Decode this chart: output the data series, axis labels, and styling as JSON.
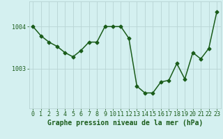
{
  "x": [
    0,
    1,
    2,
    3,
    4,
    5,
    6,
    7,
    8,
    9,
    10,
    11,
    12,
    13,
    14,
    15,
    16,
    17,
    18,
    19,
    20,
    21,
    22,
    23
  ],
  "y": [
    1004.0,
    1003.78,
    1003.63,
    1003.53,
    1003.38,
    1003.28,
    1003.43,
    1003.63,
    1003.63,
    1004.0,
    1004.0,
    1004.0,
    1003.72,
    1002.58,
    1002.42,
    1002.42,
    1002.68,
    1002.72,
    1003.12,
    1002.75,
    1003.38,
    1003.23,
    1003.48,
    1004.35
  ],
  "line_color": "#1a5c1a",
  "marker": "D",
  "marker_size": 2.5,
  "bg_color": "#d4f0f0",
  "grid_color": "#b8d4d4",
  "xlabel": "Graphe pression niveau de la mer (hPa)",
  "xtick_labels": [
    "0",
    "1",
    "2",
    "3",
    "4",
    "5",
    "6",
    "7",
    "8",
    "9",
    "10",
    "11",
    "12",
    "13",
    "14",
    "15",
    "16",
    "17",
    "18",
    "19",
    "20",
    "21",
    "22",
    "23"
  ],
  "ytick_values": [
    1003,
    1004
  ],
  "ylim_min": 1002.05,
  "ylim_max": 1004.6,
  "title_color": "#1a5c1a",
  "xlabel_fontsize": 7.0,
  "tick_fontsize": 6.0,
  "line_width": 1.1
}
